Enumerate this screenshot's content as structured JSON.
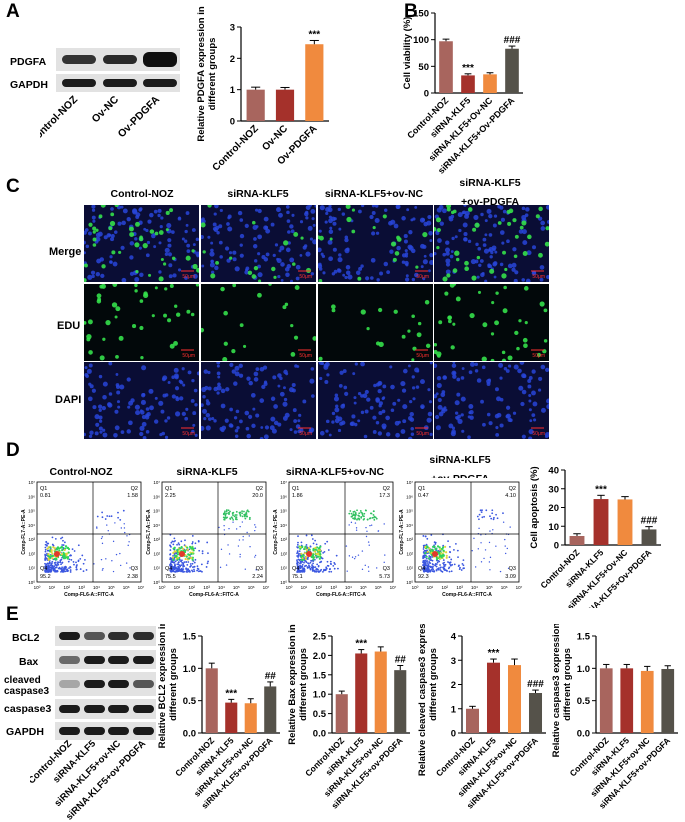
{
  "panels": {
    "a": "A",
    "b": "B",
    "c": "C",
    "d": "D",
    "e": "E"
  },
  "colors": {
    "control": "#a8655e",
    "sirna": "#a5312b",
    "ovnc": "#f08a3e",
    "ovpdgfa": "#55524a",
    "blot_bg": "#e2e2e2",
    "fluor_bg": "#0a0a20"
  },
  "A": {
    "blot_rows": [
      "PDGFA",
      "GAPDH"
    ],
    "blot_lanes": [
      "Control-NOZ",
      "Ov-NC",
      "Ov-PDGFA"
    ],
    "chart_data": {
      "type": "bar",
      "categories": [
        "Control-NOZ",
        "Ov-NC",
        "Ov-PDGFA"
      ],
      "values": [
        1.0,
        1.0,
        2.45
      ],
      "errors": [
        0.08,
        0.07,
        0.12
      ],
      "ylabel": "Relative PDGFA expression in different groups",
      "ylim": [
        0,
        3
      ],
      "yticks": [
        0,
        1,
        2,
        3
      ],
      "annotations": [
        "",
        "",
        "***"
      ]
    }
  },
  "B": {
    "chart_data": {
      "type": "bar",
      "categories": [
        "Control-NOZ",
        "siRNA-KLF5",
        "siRNA-KLF5+Ov-NC",
        "siRNA-KLF5+Ov-PDGFA"
      ],
      "values": [
        97,
        33,
        35,
        83
      ],
      "errors": [
        4,
        3,
        3,
        5
      ],
      "ylabel": "Cell viability (%)",
      "ylim": [
        0,
        150
      ],
      "yticks": [
        0,
        50,
        100,
        150
      ],
      "annotations": [
        "",
        "***",
        "",
        "###"
      ]
    }
  },
  "C": {
    "columns": [
      "Control-NOZ",
      "siRNA-KLF5",
      "siRNA-KLF5+ov-NC",
      "siRNA-KLF5\n+ov-PDGFA"
    ],
    "rows": [
      "Merge",
      "EDU",
      "DAPI"
    ],
    "scale": "50μm"
  },
  "D": {
    "columns": [
      "Control-NOZ",
      "siRNA-KLF5",
      "siRNA-KLF5+ov-NC",
      "siRNA-KLF5\n+ov-PDGFA"
    ],
    "ylabel": "Comp-FL7-A::PE-A",
    "xlabel": "Comp-FL6-A::FITC-A",
    "axis_ticks": [
      "10⁰",
      "10¹",
      "10²",
      "10³",
      "10⁴",
      "10⁵",
      "10⁶",
      "10⁷"
    ],
    "quadrants": [
      {
        "q1": "0.81",
        "q2": "1.58",
        "q3": "2.38",
        "q4": "95.2"
      },
      {
        "q1": "2.25",
        "q2": "20.0",
        "q3": "2.24",
        "q4": "75.5"
      },
      {
        "q1": "1.86",
        "q2": "17.3",
        "q3": "5.73",
        "q4": "75.1"
      },
      {
        "q1": "0.47",
        "q2": "4.10",
        "q3": "3.09",
        "q4": "92.3"
      }
    ],
    "quad_labels": [
      "Q1",
      "Q2",
      "Q3",
      "Q4"
    ],
    "chart_data": {
      "type": "bar",
      "categories": [
        "Control-NOZ",
        "siRNA-KLF5",
        "siRNA-KLF5+Ov-NC",
        "siRNA-KLF5+Ov-PDGFA"
      ],
      "values": [
        4.8,
        24.5,
        24.3,
        8.3
      ],
      "errors": [
        1.2,
        2,
        1.5,
        1.5
      ],
      "ylabel": "Cell apoptosis (%)",
      "ylim": [
        0,
        40
      ],
      "yticks": [
        0,
        10,
        20,
        30,
        40
      ],
      "annotations": [
        "",
        "***",
        "",
        "###"
      ]
    }
  },
  "E": {
    "blot_rows": [
      "BCL2",
      "Bax",
      "cleaved caspase3",
      "caspase3",
      "GAPDH"
    ],
    "blot_lanes": [
      "Control-NOZ",
      "siRNA-KLF5",
      "siRNA-KLF5+ov-NC",
      "siRNA-KLF5+ov-PDGFA"
    ],
    "chart_data": [
      {
        "type": "bar",
        "categories": [
          "Control-NOZ",
          "siRNA-KLF5",
          "siRNA-KLF5+ov-NC",
          "siRNA-KLF5+ov-PDGFA"
        ],
        "values": [
          1.0,
          0.47,
          0.46,
          0.72
        ],
        "errors": [
          0.08,
          0.05,
          0.07,
          0.07
        ],
        "ylabel": "Relative BCL2 expression in different groups",
        "ylim": [
          0,
          1.5
        ],
        "yticks": [
          "0.0",
          "0.5",
          "1.0",
          "1.5"
        ],
        "annotations": [
          "",
          "***",
          "",
          "##"
        ]
      },
      {
        "type": "bar",
        "categories": [
          "Control-NOZ",
          "siRNA-KLF5",
          "siRNA-KLF5+ov-NC",
          "siRNA-KLF5+ov-PDGFA"
        ],
        "values": [
          1.0,
          2.05,
          2.1,
          1.62
        ],
        "errors": [
          0.08,
          0.1,
          0.12,
          0.12
        ],
        "ylabel": "Relative Bax expression in different groups",
        "ylim": [
          0,
          2.5
        ],
        "yticks": [
          "0.0",
          "0.5",
          "1.0",
          "1.5",
          "2.0",
          "2.5"
        ],
        "annotations": [
          "",
          "***",
          "",
          "##"
        ]
      },
      {
        "type": "bar",
        "categories": [
          "Control-NOZ",
          "siRNA-KLF5",
          "siRNA-KLF5+ov-NC",
          "siRNA-KLF5+ov-PDGFA"
        ],
        "values": [
          1.0,
          2.9,
          2.8,
          1.65
        ],
        "errors": [
          0.1,
          0.15,
          0.25,
          0.12
        ],
        "ylabel": "Relative cleaved caspase3 expression in different groups",
        "ylim": [
          0,
          4
        ],
        "yticks": [
          "0",
          "1",
          "2",
          "3",
          "4"
        ],
        "annotations": [
          "",
          "***",
          "",
          "###"
        ]
      },
      {
        "type": "bar",
        "categories": [
          "Control-NOZ",
          "siRNA-KLF5",
          "siRNA-KLF5+ov-NC",
          "siRNA-KLF5+ov-PDGFA"
        ],
        "values": [
          1.0,
          1.0,
          0.96,
          0.99
        ],
        "errors": [
          0.06,
          0.06,
          0.07,
          0.05
        ],
        "ylabel": "Relative caspase3 expression in different groups",
        "ylim": [
          0,
          1.5
        ],
        "yticks": [
          "0.0",
          "0.5",
          "1.0",
          "1.5"
        ],
        "annotations": [
          "",
          "",
          "",
          ""
        ]
      }
    ]
  }
}
